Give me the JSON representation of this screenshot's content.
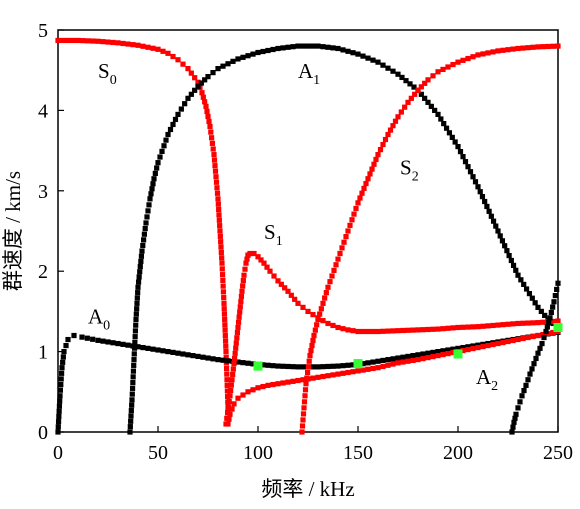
{
  "chart_data": {
    "type": "scatter",
    "xlabel": "频率 / kHz",
    "ylabel": "群速度 / km/s",
    "xlim": [
      0,
      250
    ],
    "ylim": [
      0,
      5
    ],
    "xticks": [
      0,
      50,
      100,
      150,
      200,
      250
    ],
    "yticks": [
      0,
      1,
      2,
      3,
      4,
      5
    ],
    "grid": false,
    "legend": "none",
    "colors": {
      "symmetric": "#ff0000",
      "antisymmetric": "#000000",
      "marker": "#33ff33"
    },
    "annotations": [
      {
        "base": "S",
        "sub": "0",
        "x": 20,
        "y": 4.4
      },
      {
        "base": "A",
        "sub": "1",
        "x": 120,
        "y": 4.4
      },
      {
        "base": "S",
        "sub": "1",
        "x": 103,
        "y": 2.4
      },
      {
        "base": "S",
        "sub": "2",
        "x": 171,
        "y": 3.2
      },
      {
        "base": "A",
        "sub": "0",
        "x": 15,
        "y": 1.35
      },
      {
        "base": "A",
        "sub": "2",
        "x": 209,
        "y": 0.6
      }
    ],
    "series": [
      {
        "mode": "S0",
        "color": "#ff0000",
        "x": [
          0,
          10,
          20,
          30,
          40,
          50,
          55,
          60,
          65,
          70,
          72,
          74,
          76,
          78,
          80,
          82,
          83,
          84,
          85
        ],
        "y": [
          4.87,
          4.87,
          4.86,
          4.84,
          4.81,
          4.76,
          4.71,
          4.63,
          4.52,
          4.35,
          4.22,
          4.05,
          3.8,
          3.45,
          2.9,
          2.1,
          1.6,
          1.0,
          0.3
        ]
      },
      {
        "mode": "A0",
        "color": "#000000",
        "x": [
          0,
          1,
          2,
          3,
          5,
          8,
          12,
          20,
          30,
          40,
          50,
          60,
          70,
          80,
          90,
          100,
          110,
          120,
          130,
          140,
          150,
          160,
          170,
          180,
          190,
          200,
          210,
          220,
          230,
          240,
          250
        ],
        "y": [
          0.0,
          0.45,
          0.8,
          1.0,
          1.15,
          1.2,
          1.18,
          1.14,
          1.1,
          1.06,
          1.02,
          0.98,
          0.94,
          0.9,
          0.87,
          0.84,
          0.82,
          0.81,
          0.81,
          0.82,
          0.84,
          0.88,
          0.92,
          0.96,
          1.0,
          1.04,
          1.08,
          1.12,
          1.16,
          1.2,
          1.24
        ]
      },
      {
        "mode": "A1",
        "color": "#000000",
        "x": [
          36,
          37,
          38,
          39,
          40,
          42,
          44,
          46,
          48,
          50,
          55,
          60,
          65,
          70,
          75,
          80,
          90,
          100,
          110,
          120,
          130,
          140,
          150,
          160,
          170,
          180,
          190,
          200,
          210,
          220,
          230,
          240,
          245,
          250
        ],
        "y": [
          0.0,
          0.4,
          0.9,
          1.4,
          1.8,
          2.25,
          2.6,
          2.9,
          3.15,
          3.35,
          3.7,
          3.95,
          4.15,
          4.3,
          4.42,
          4.52,
          4.64,
          4.72,
          4.77,
          4.8,
          4.8,
          4.77,
          4.7,
          4.6,
          4.45,
          4.25,
          3.95,
          3.55,
          3.05,
          2.5,
          1.95,
          1.55,
          1.4,
          1.3
        ]
      },
      {
        "mode": "S1",
        "color": "#ff0000",
        "x": [
          84,
          86,
          88,
          90,
          92,
          93,
          94,
          95
        ],
        "y": [
          0.1,
          0.45,
          0.85,
          1.3,
          1.75,
          1.95,
          2.1,
          2.2
        ]
      },
      {
        "mode": "S1",
        "color": "#ff0000",
        "x": [
          95,
          96,
          98,
          100,
          103,
          106,
          110,
          115,
          120,
          125,
          130,
          135,
          140,
          145,
          150,
          160,
          170,
          180,
          190,
          200,
          210,
          220,
          230,
          240,
          250
        ],
        "y": [
          2.2,
          2.22,
          2.22,
          2.18,
          2.1,
          2.0,
          1.88,
          1.75,
          1.6,
          1.5,
          1.42,
          1.35,
          1.3,
          1.27,
          1.25,
          1.25,
          1.26,
          1.27,
          1.28,
          1.3,
          1.31,
          1.33,
          1.35,
          1.36,
          1.38
        ]
      },
      {
        "mode": "S1",
        "color": "#ff0000",
        "x": [
          85,
          86,
          88,
          90,
          95,
          100,
          105,
          110,
          115,
          120,
          125,
          130,
          140,
          150,
          160,
          170,
          180,
          190,
          200,
          210,
          220,
          230,
          240,
          250
        ],
        "y": [
          0.1,
          0.22,
          0.35,
          0.42,
          0.5,
          0.55,
          0.58,
          0.6,
          0.62,
          0.64,
          0.66,
          0.68,
          0.72,
          0.76,
          0.8,
          0.86,
          0.9,
          0.95,
          1.0,
          1.05,
          1.1,
          1.15,
          1.2,
          1.25
        ]
      },
      {
        "mode": "S2",
        "color": "#ff0000",
        "x": [
          122,
          123,
          124,
          126,
          128,
          130,
          135,
          140,
          145,
          150,
          155,
          160,
          165,
          170,
          175,
          180,
          185,
          190,
          200,
          210,
          220,
          230,
          240,
          250
        ],
        "y": [
          0.0,
          0.3,
          0.6,
          0.95,
          1.2,
          1.4,
          1.8,
          2.15,
          2.5,
          2.85,
          3.15,
          3.45,
          3.7,
          3.92,
          4.1,
          4.25,
          4.38,
          4.48,
          4.6,
          4.69,
          4.74,
          4.77,
          4.79,
          4.8
        ]
      },
      {
        "mode": "A2",
        "color": "#000000",
        "x": [
          227,
          228,
          229,
          230,
          232,
          234,
          236,
          238,
          240,
          242,
          244,
          246,
          248,
          250
        ],
        "y": [
          0.0,
          0.12,
          0.22,
          0.3,
          0.45,
          0.58,
          0.72,
          0.85,
          0.98,
          1.1,
          1.25,
          1.42,
          1.62,
          1.85
        ]
      },
      {
        "mode": "experiment",
        "color": "#33ff33",
        "marker": "square",
        "x": [
          100,
          150,
          200,
          250
        ],
        "y": [
          0.82,
          0.85,
          0.97,
          1.3
        ]
      }
    ]
  }
}
